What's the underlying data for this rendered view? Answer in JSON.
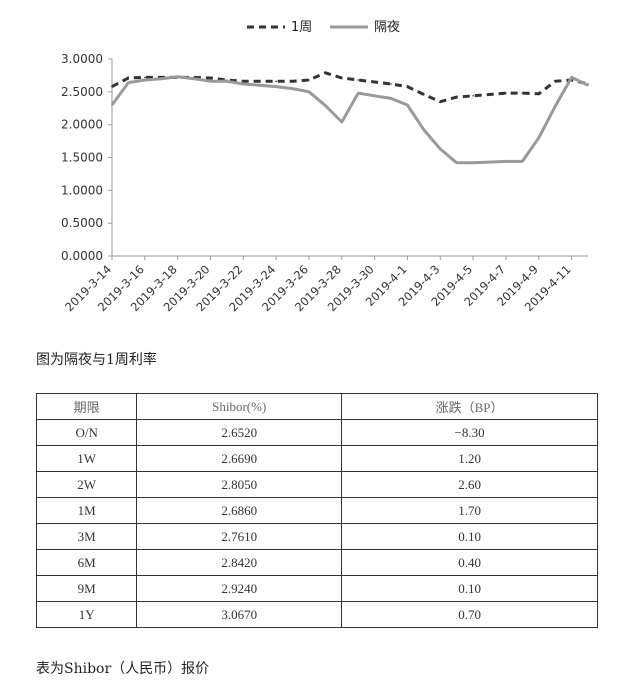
{
  "chart_data": {
    "type": "line",
    "legend_position": "top",
    "grid": false,
    "ylim": [
      0,
      3
    ],
    "yticks": [
      "0.0000",
      "0.5000",
      "1.0000",
      "1.5000",
      "2.0000",
      "2.5000",
      "3.0000"
    ],
    "x": [
      "2019-3-14",
      "2019-3-15",
      "2019-3-16",
      "2019-3-17",
      "2019-3-18",
      "2019-3-19",
      "2019-3-20",
      "2019-3-21",
      "2019-3-22",
      "2019-3-23",
      "2019-3-24",
      "2019-3-25",
      "2019-3-26",
      "2019-3-27",
      "2019-3-28",
      "2019-3-29",
      "2019-3-30",
      "2019-3-31",
      "2019-4-1",
      "2019-4-2",
      "2019-4-3",
      "2019-4-4",
      "2019-4-5",
      "2019-4-6",
      "2019-4-7",
      "2019-4-8",
      "2019-4-9",
      "2019-4-10",
      "2019-4-11",
      "2019-4-12"
    ],
    "xtick_labels": [
      "2019-3-14",
      "2019-3-16",
      "2019-3-18",
      "2019-3-20",
      "2019-3-22",
      "2019-3-24",
      "2019-3-26",
      "2019-3-28",
      "2019-3-30",
      "2019-4-1",
      "2019-4-3",
      "2019-4-5",
      "2019-4-7",
      "2019-4-9",
      "2019-4-11"
    ],
    "series": [
      {
        "name": "1周",
        "style": "dashed",
        "color": "#333333",
        "values": [
          2.58,
          2.71,
          2.72,
          2.72,
          2.72,
          2.72,
          2.71,
          2.68,
          2.66,
          2.66,
          2.66,
          2.66,
          2.68,
          2.79,
          2.71,
          2.68,
          2.65,
          2.62,
          2.58,
          2.46,
          2.35,
          2.42,
          2.44,
          2.46,
          2.48,
          2.48,
          2.47,
          2.66,
          2.68,
          2.62
        ]
      },
      {
        "name": "隔夜",
        "style": "solid",
        "color": "#999999",
        "values": [
          2.3,
          2.64,
          2.68,
          2.7,
          2.73,
          2.7,
          2.66,
          2.66,
          2.62,
          2.6,
          2.58,
          2.55,
          2.5,
          2.29,
          2.04,
          2.48,
          2.44,
          2.4,
          2.3,
          1.92,
          1.63,
          1.42,
          1.42,
          1.43,
          1.44,
          1.44,
          1.8,
          2.28,
          2.72,
          2.6
        ]
      }
    ]
  },
  "captions": {
    "chart": "图为隔夜与1周利率",
    "table": "表为Shibor（人民币）报价"
  },
  "table": {
    "headers": [
      "期限",
      "Shibor(%)",
      "涨跌（BP）"
    ],
    "rows": [
      [
        "O/N",
        "2.6520",
        "−8.30"
      ],
      [
        "1W",
        "2.6690",
        "1.20"
      ],
      [
        "2W",
        "2.8050",
        "2.60"
      ],
      [
        "1M",
        "2.6860",
        "1.70"
      ],
      [
        "3M",
        "2.7610",
        "0.10"
      ],
      [
        "6M",
        "2.8420",
        "0.40"
      ],
      [
        "9M",
        "2.9240",
        "0.10"
      ],
      [
        "1Y",
        "3.0670",
        "0.70"
      ]
    ]
  }
}
